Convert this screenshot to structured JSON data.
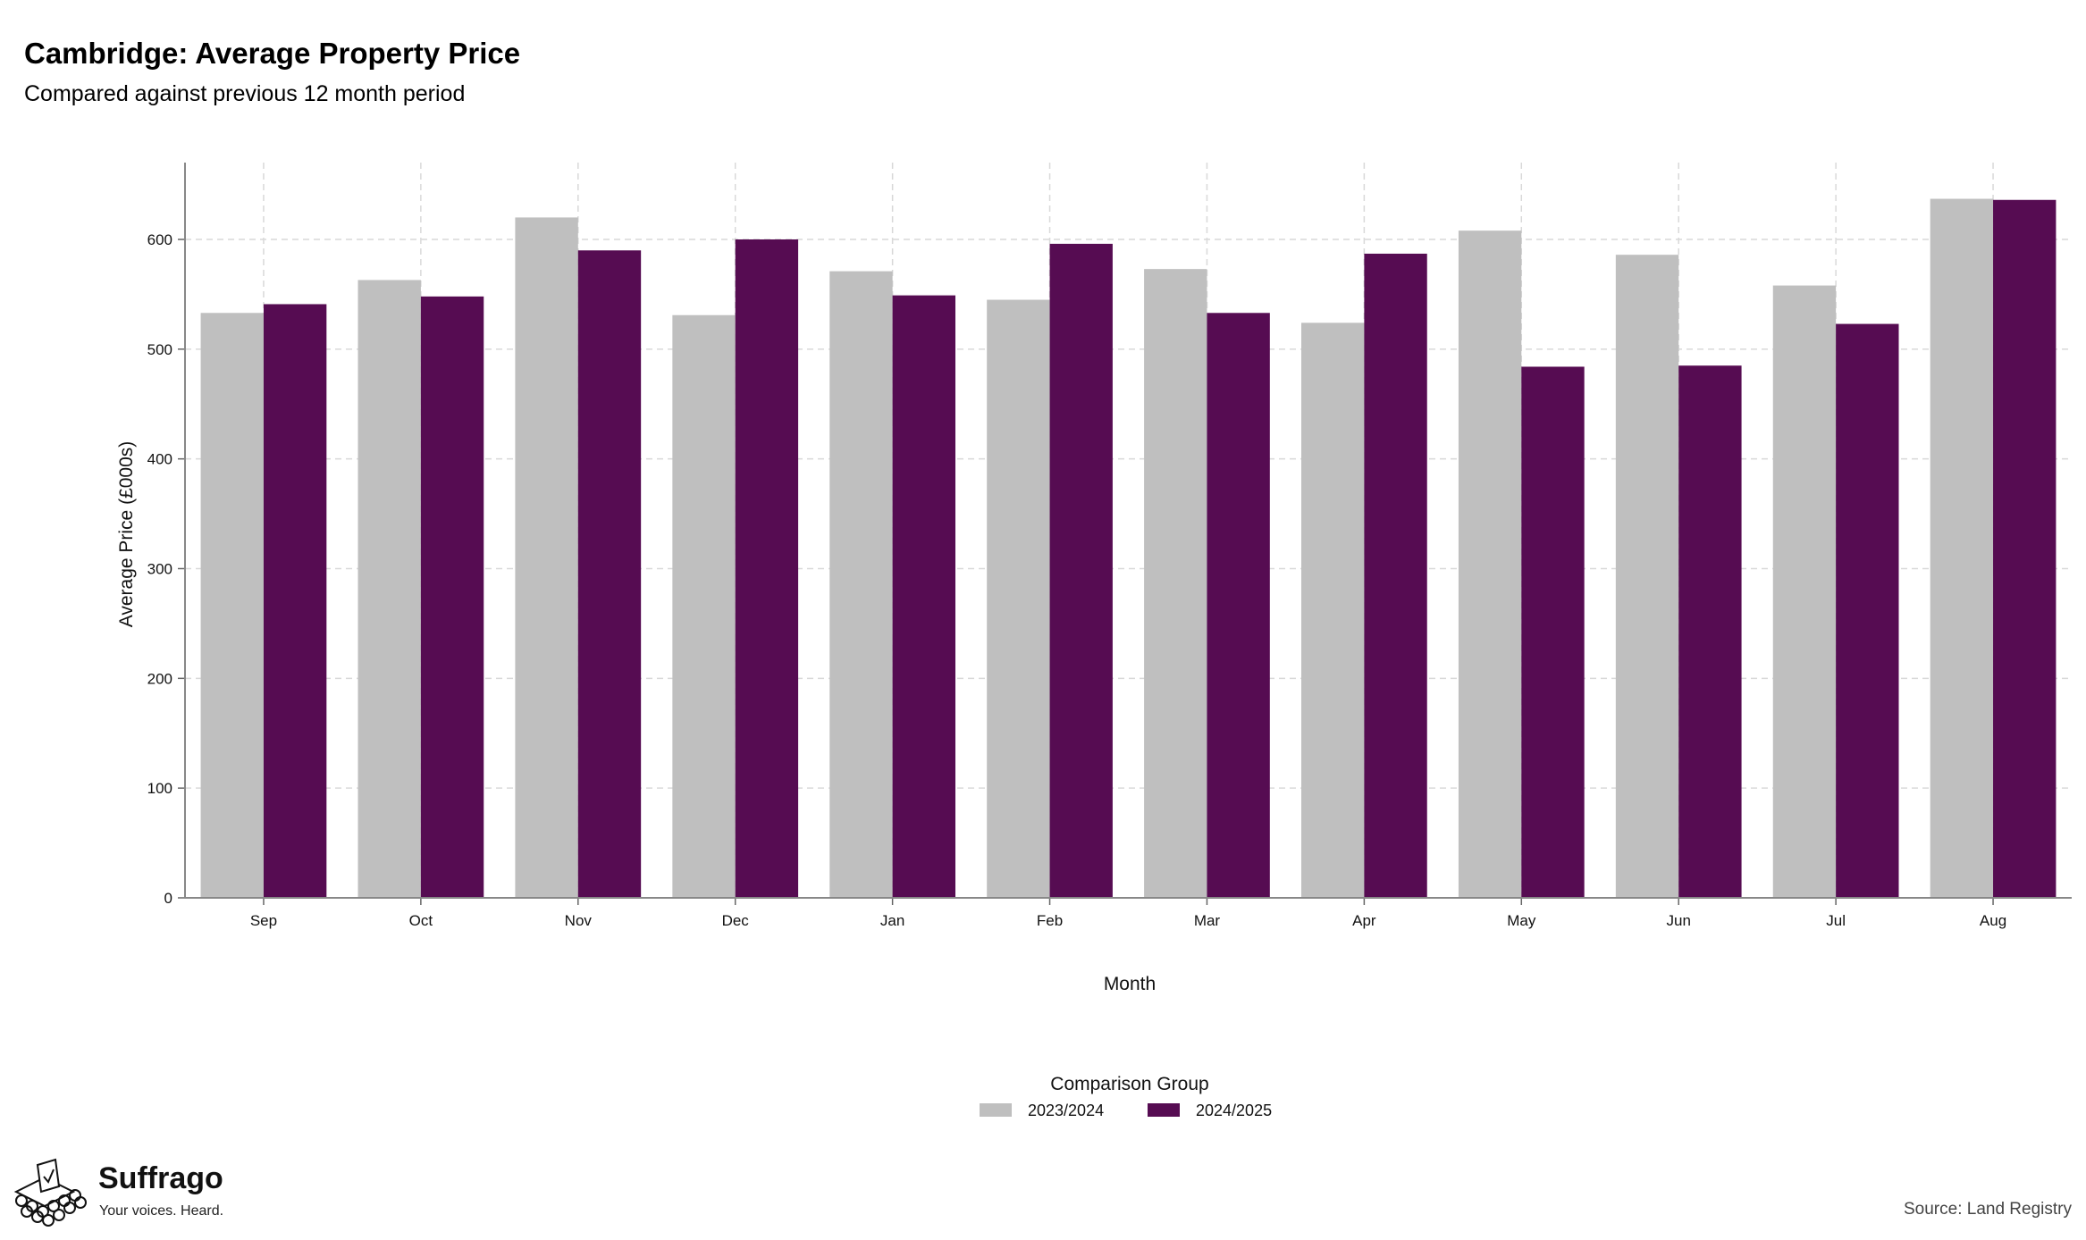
{
  "chart_data": {
    "type": "bar",
    "title": "Cambridge: Average Property Price",
    "subtitle": "Compared against previous 12 month period",
    "xlabel": "Month",
    "ylabel": "Average Price (£000s)",
    "ylim": [
      0,
      670
    ],
    "yticks": [
      0,
      100,
      200,
      300,
      400,
      500,
      600
    ],
    "grid": true,
    "legend_position": "bottom",
    "legend_title": "Comparison Group",
    "categories": [
      "Sep",
      "Oct",
      "Nov",
      "Dec",
      "Jan",
      "Feb",
      "Mar",
      "Apr",
      "May",
      "Jun",
      "Jul",
      "Aug"
    ],
    "series": [
      {
        "name": "2023/2024",
        "color": "#bfbfbf",
        "values": [
          533,
          563,
          620,
          531,
          571,
          545,
          573,
          524,
          608,
          586,
          558,
          637
        ]
      },
      {
        "name": "2024/2025",
        "color": "#560c52",
        "values": [
          541,
          548,
          590,
          600,
          549,
          596,
          533,
          587,
          484,
          485,
          523,
          636
        ]
      }
    ]
  },
  "branding": {
    "name": "Suffrago",
    "tagline": "Your voices. Heard.",
    "logo_icon": "ballot-box-icon"
  },
  "source": "Source: Land Registry"
}
